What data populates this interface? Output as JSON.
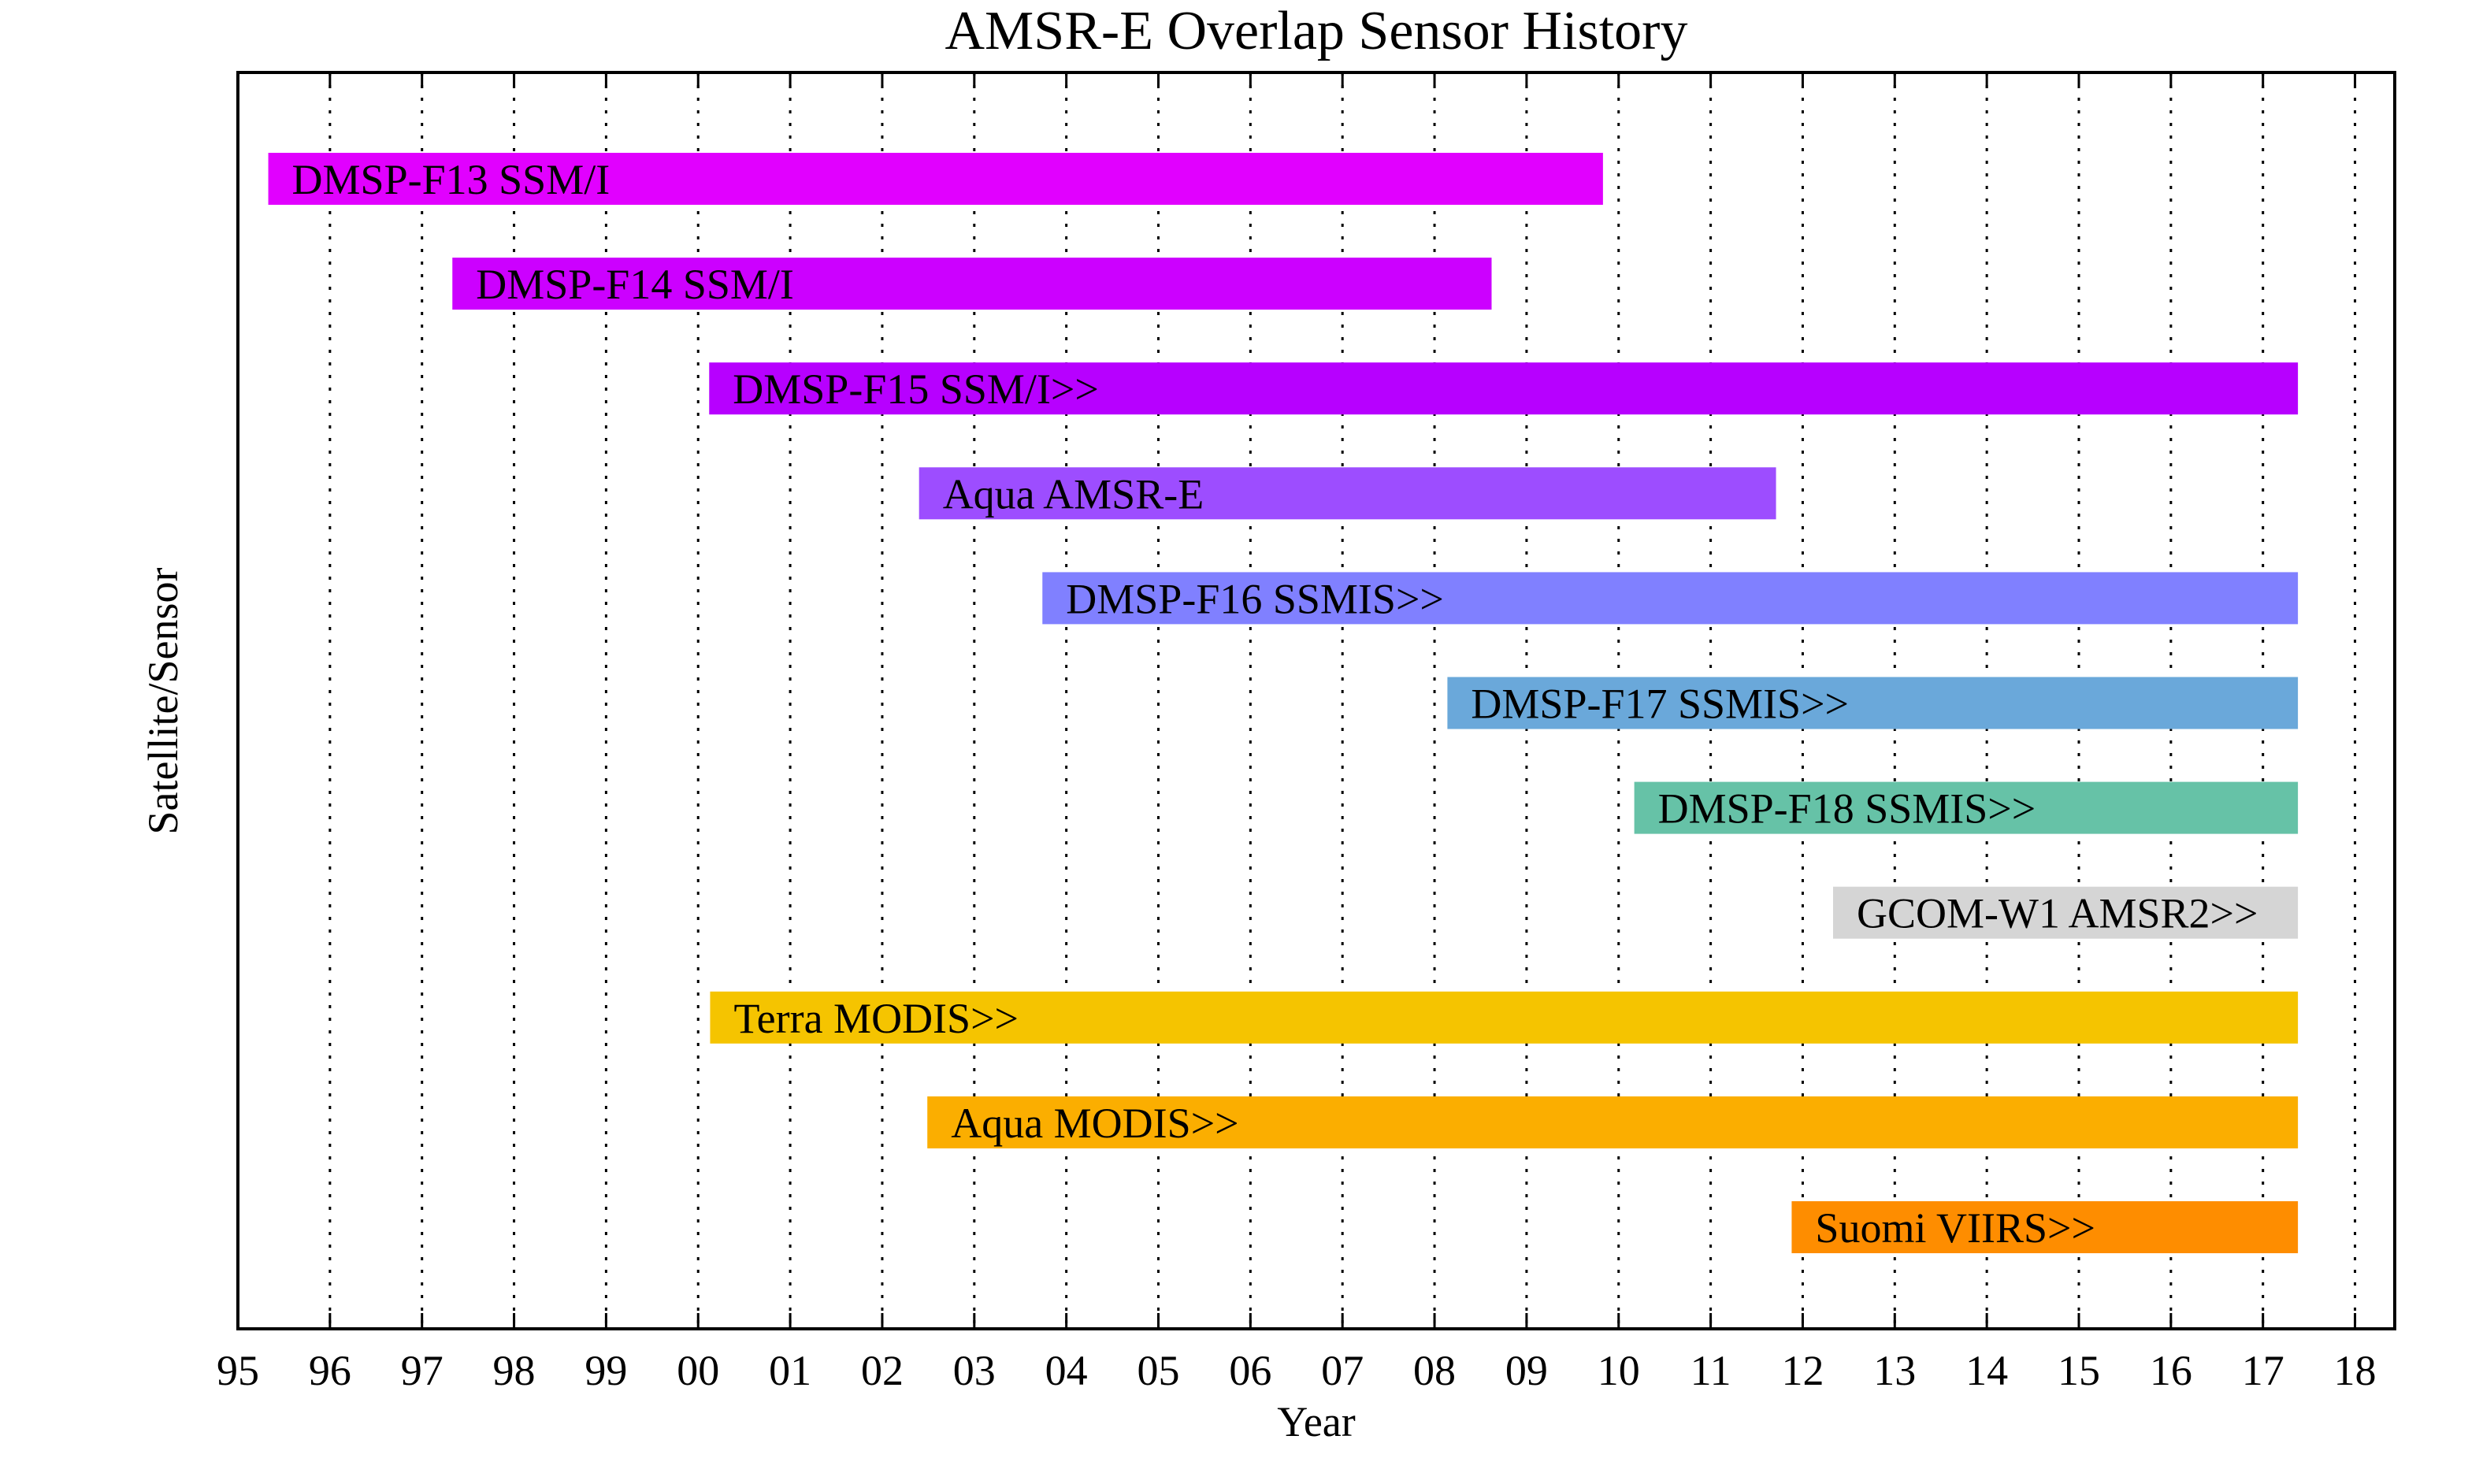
{
  "chart_data": {
    "type": "bar",
    "orientation": "horizontal",
    "title": "AMSR-E Overlap Sensor History",
    "xlabel": "Year",
    "ylabel": "Satellite/Sensor",
    "xlim": [
      1995,
      2018.4
    ],
    "x_ticks": [
      1995,
      1996,
      1997,
      1998,
      1999,
      2000,
      2001,
      2002,
      2003,
      2004,
      2005,
      2006,
      2007,
      2008,
      2009,
      2010,
      2011,
      2012,
      2013,
      2014,
      2015,
      2016,
      2017,
      2018
    ],
    "x_tick_labels": [
      "95",
      "96",
      "97",
      "98",
      "99",
      "00",
      "01",
      "02",
      "03",
      "04",
      "05",
      "06",
      "07",
      "08",
      "09",
      "10",
      "11",
      "12",
      "13",
      "14",
      "15",
      "16",
      "17",
      "18"
    ],
    "grid": "vertical dotted",
    "series": [
      {
        "label": "DMSP-F13 SSM/I",
        "start": 1995.33,
        "end": 2009.83,
        "color": "#E100FF"
      },
      {
        "label": "DMSP-F14 SSM/I",
        "start": 1997.33,
        "end": 2008.62,
        "color": "#CC00FF"
      },
      {
        "label": "DMSP-F15 SSM/I>>",
        "start": 2000.12,
        "end": 2017.38,
        "color": "#B700FF"
      },
      {
        "label": "Aqua AMSR-E",
        "start": 2002.4,
        "end": 2011.71,
        "color": "#9D4DFF"
      },
      {
        "label": "DMSP-F16 SSMIS>>",
        "start": 2003.74,
        "end": 2017.38,
        "color": "#8080FF"
      },
      {
        "label": "DMSP-F17 SSMIS>>",
        "start": 2008.14,
        "end": 2017.38,
        "color": "#6AA8DA"
      },
      {
        "label": "DMSP-F18 SSMIS>>",
        "start": 2010.17,
        "end": 2017.38,
        "color": "#66C2A7"
      },
      {
        "label": "GCOM-W1 AMSR2>>",
        "start": 2012.33,
        "end": 2017.38,
        "color": "#D5D5D5"
      },
      {
        "label": "Terra MODIS>>",
        "start": 2000.13,
        "end": 2017.38,
        "color": "#F5C400"
      },
      {
        "label": "Aqua MODIS>>",
        "start": 2002.49,
        "end": 2017.38,
        "color": "#FBAE00"
      },
      {
        "label": "Suomi VIIRS>>",
        "start": 2011.88,
        "end": 2017.38,
        "color": "#FE8D00"
      }
    ]
  }
}
